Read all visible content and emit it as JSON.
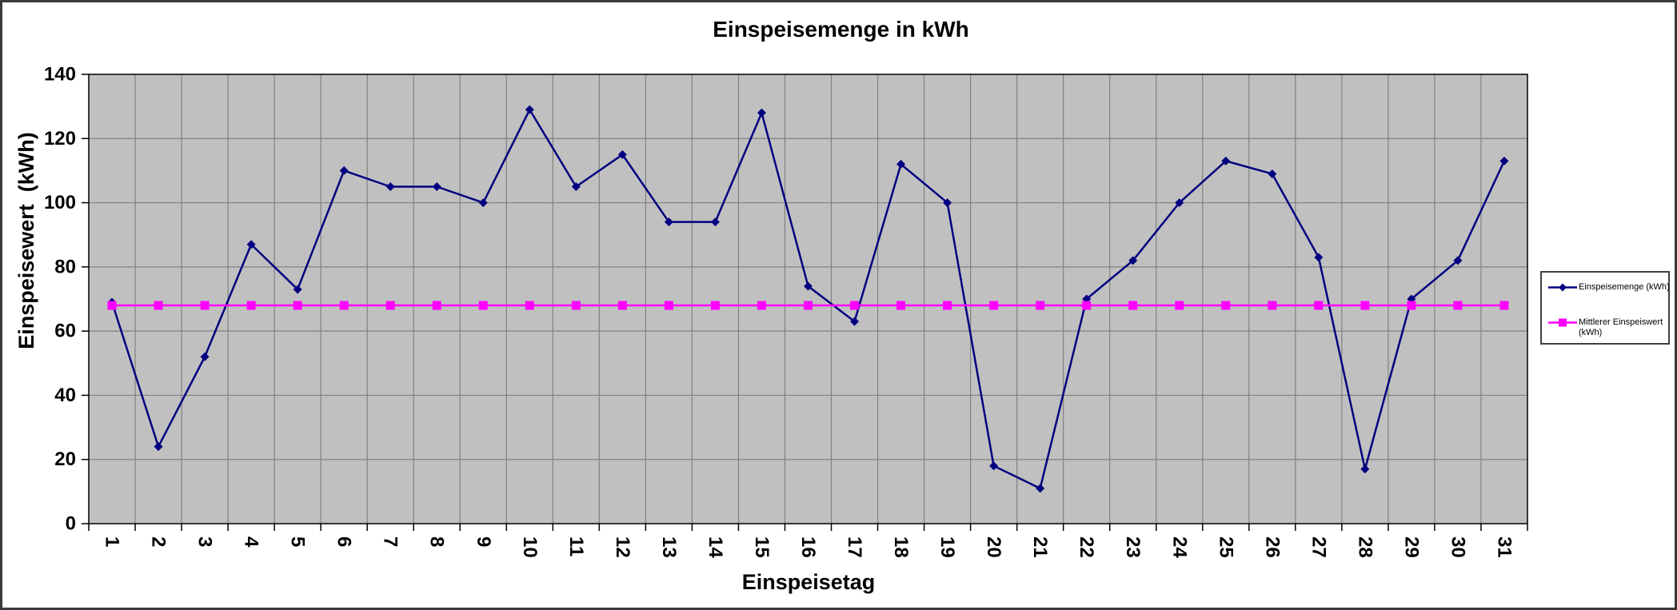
{
  "chart_data": {
    "type": "line",
    "title": "Einspeisemenge in kWh",
    "xlabel": "Einspeisetag",
    "ylabel": "Einspeisewert  (kWh)",
    "categories": [
      1,
      2,
      3,
      4,
      5,
      6,
      7,
      8,
      9,
      10,
      11,
      12,
      13,
      14,
      15,
      16,
      17,
      18,
      19,
      20,
      21,
      22,
      23,
      24,
      25,
      26,
      27,
      28,
      29,
      30,
      31
    ],
    "series": [
      {
        "name": "Einspeisemenge (kWh)",
        "color": "#000080",
        "marker": "diamond",
        "values": [
          69,
          24,
          52,
          87,
          73,
          110,
          105,
          105,
          100,
          129,
          105,
          115,
          94,
          94,
          128,
          74,
          63,
          112,
          100,
          18,
          11,
          70,
          82,
          100,
          113,
          109,
          83,
          17,
          70,
          82,
          113
        ]
      },
      {
        "name": "Mittlerer Einspeiswert (kWh)",
        "color": "#FF00FF",
        "marker": "square",
        "values": [
          68,
          68,
          68,
          68,
          68,
          68,
          68,
          68,
          68,
          68,
          68,
          68,
          68,
          68,
          68,
          68,
          68,
          68,
          68,
          68,
          68,
          68,
          68,
          68,
          68,
          68,
          68,
          68,
          68,
          68,
          68
        ]
      }
    ],
    "ylim": [
      0,
      140
    ],
    "ytick_step": 20,
    "yticks": [
      0,
      20,
      40,
      60,
      80,
      100,
      120,
      140
    ],
    "grid": true,
    "legend_position": "right",
    "plot_bg_color": "#C0C0C0",
    "grid_color": "#808080",
    "axis_color": "#000000"
  }
}
